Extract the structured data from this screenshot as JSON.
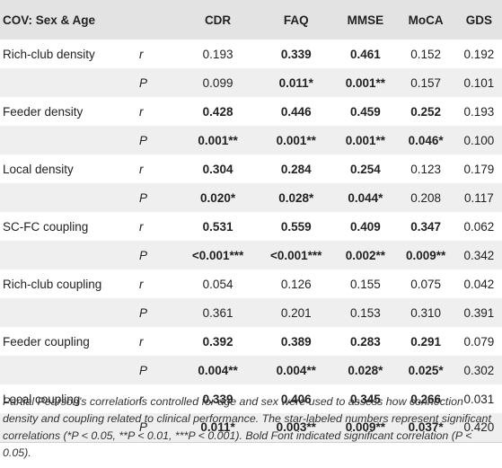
{
  "table": {
    "headers": [
      "COV: Sex & Age",
      "",
      "CDR",
      "FAQ",
      "MMSE",
      "MoCA",
      "GDS"
    ],
    "rows": [
      {
        "label": "Rich-club density",
        "stat": "r",
        "cells": [
          {
            "text": "0.193",
            "bold": false
          },
          {
            "text": "0.339",
            "bold": true
          },
          {
            "text": "0.461",
            "bold": true
          },
          {
            "text": "0.152",
            "bold": false
          },
          {
            "text": "0.192",
            "bold": false
          }
        ]
      },
      {
        "label": "",
        "stat": "P",
        "cells": [
          {
            "text": "0.099",
            "bold": false
          },
          {
            "text": "0.011*",
            "bold": true
          },
          {
            "text": "0.001**",
            "bold": true
          },
          {
            "text": "0.157",
            "bold": false
          },
          {
            "text": "0.101",
            "bold": false
          }
        ]
      },
      {
        "label": "Feeder density",
        "stat": "r",
        "cells": [
          {
            "text": "0.428",
            "bold": true
          },
          {
            "text": "0.446",
            "bold": true
          },
          {
            "text": "0.459",
            "bold": true
          },
          {
            "text": "0.252",
            "bold": true
          },
          {
            "text": "0.193",
            "bold": false
          }
        ]
      },
      {
        "label": "",
        "stat": "P",
        "cells": [
          {
            "text": "0.001**",
            "bold": true
          },
          {
            "text": "0.001**",
            "bold": true
          },
          {
            "text": "0.001**",
            "bold": true
          },
          {
            "text": "0.046*",
            "bold": true
          },
          {
            "text": "0.100",
            "bold": false
          }
        ]
      },
      {
        "label": "Local density",
        "stat": "r",
        "cells": [
          {
            "text": "0.304",
            "bold": true
          },
          {
            "text": "0.284",
            "bold": true
          },
          {
            "text": "0.254",
            "bold": true
          },
          {
            "text": "0.123",
            "bold": false
          },
          {
            "text": "0.179",
            "bold": false
          }
        ]
      },
      {
        "label": "",
        "stat": "P",
        "cells": [
          {
            "text": "0.020*",
            "bold": true
          },
          {
            "text": "0.028*",
            "bold": true
          },
          {
            "text": "0.044*",
            "bold": true
          },
          {
            "text": "0.208",
            "bold": false
          },
          {
            "text": "0.117",
            "bold": false
          }
        ]
      },
      {
        "label": "SC-FC coupling",
        "stat": "r",
        "cells": [
          {
            "text": "0.531",
            "bold": true
          },
          {
            "text": "0.559",
            "bold": true
          },
          {
            "text": "0.409",
            "bold": true
          },
          {
            "text": "0.347",
            "bold": true
          },
          {
            "text": "0.062",
            "bold": false
          }
        ]
      },
      {
        "label": "",
        "stat": "P",
        "cells": [
          {
            "text": "<0.001***",
            "bold": true
          },
          {
            "text": "<0.001***",
            "bold": true
          },
          {
            "text": "0.002**",
            "bold": true
          },
          {
            "text": "0.009**",
            "bold": true
          },
          {
            "text": "0.342",
            "bold": false
          }
        ]
      },
      {
        "label": "Rich-club coupling",
        "stat": "r",
        "cells": [
          {
            "text": "0.054",
            "bold": false
          },
          {
            "text": "0.126",
            "bold": false
          },
          {
            "text": "0.155",
            "bold": false
          },
          {
            "text": "0.075",
            "bold": false
          },
          {
            "text": "0.042",
            "bold": false
          }
        ]
      },
      {
        "label": "",
        "stat": "P",
        "cells": [
          {
            "text": "0.361",
            "bold": false
          },
          {
            "text": "0.201",
            "bold": false
          },
          {
            "text": "0.153",
            "bold": false
          },
          {
            "text": "0.310",
            "bold": false
          },
          {
            "text": "0.391",
            "bold": false
          }
        ]
      },
      {
        "label": "Feeder coupling",
        "stat": "r",
        "cells": [
          {
            "text": "0.392",
            "bold": true
          },
          {
            "text": "0.389",
            "bold": true
          },
          {
            "text": "0.283",
            "bold": true
          },
          {
            "text": "0.291",
            "bold": true
          },
          {
            "text": "0.079",
            "bold": false
          }
        ]
      },
      {
        "label": "",
        "stat": "P",
        "cells": [
          {
            "text": "0.004**",
            "bold": true
          },
          {
            "text": "0.004**",
            "bold": true
          },
          {
            "text": "0.028*",
            "bold": true
          },
          {
            "text": "0.025*",
            "bold": true
          },
          {
            "text": "0.302",
            "bold": false
          }
        ]
      },
      {
        "label": "Local coupling",
        "stat": "r",
        "cells": [
          {
            "text": "0.339",
            "bold": true
          },
          {
            "text": "0.406",
            "bold": true
          },
          {
            "text": "0.345",
            "bold": true
          },
          {
            "text": "0.266",
            "bold": true
          },
          {
            "text": "0.031",
            "bold": false
          }
        ]
      },
      {
        "label": "",
        "stat": "P",
        "cells": [
          {
            "text": "0.011*",
            "bold": true
          },
          {
            "text": "0.003**",
            "bold": true
          },
          {
            "text": "0.009**",
            "bold": true
          },
          {
            "text": "0.037*",
            "bold": true
          },
          {
            "text": "0.420",
            "bold": false
          }
        ]
      }
    ]
  },
  "footnote": "Partial Pearson’s correlations controlled for age and sex were used to assess how connection density and coupling related to clinical performance. The star-labeled numbers represent significant correlations (*P < 0.05, **P < 0.01, ***P < 0.001). Bold Font indicated significant correlation (P < 0.05).",
  "colors": {
    "header_bg": "#e3e3e3",
    "stripe_bg": "#efefef",
    "text": "#222222"
  }
}
